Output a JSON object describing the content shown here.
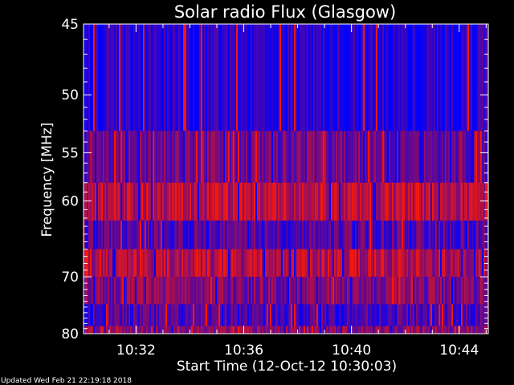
{
  "chart_data": {
    "type": "heatmap",
    "title": "Solar radio Flux (Glasgow)",
    "xlabel": "Start Time (12-Oct-12 10:30:03)",
    "ylabel": "Frequency [MHz]",
    "x_start": "10:30:03",
    "x_end": "10:45:05",
    "xlim_minutes": [
      0.05,
      15.08
    ],
    "ylim": [
      45,
      80
    ],
    "y_scale": "reciprocal",
    "xticks": [
      {
        "label": "10:32",
        "value": 2
      },
      {
        "label": "10:36",
        "value": 6
      },
      {
        "label": "10:40",
        "value": 10
      },
      {
        "label": "10:44",
        "value": 14
      }
    ],
    "yticks": [
      {
        "label": "45",
        "value": 45
      },
      {
        "label": "50",
        "value": 50
      },
      {
        "label": "55",
        "value": 55
      },
      {
        "label": "60",
        "value": 60
      },
      {
        "label": "70",
        "value": 70
      },
      {
        "label": "80",
        "value": 80
      }
    ],
    "bands": [
      {
        "from_mhz": 45.0,
        "to_mhz": 53.0,
        "level": 0.15
      },
      {
        "from_mhz": 53.0,
        "to_mhz": 58.0,
        "level": 0.45
      },
      {
        "from_mhz": 58.0,
        "to_mhz": 62.3,
        "level": 0.72
      },
      {
        "from_mhz": 62.3,
        "to_mhz": 66.0,
        "level": 0.35
      },
      {
        "from_mhz": 66.0,
        "to_mhz": 70.0,
        "level": 0.7
      },
      {
        "from_mhz": 70.0,
        "to_mhz": 74.5,
        "level": 0.5
      },
      {
        "from_mhz": 74.5,
        "to_mhz": 78.5,
        "level": 0.3
      },
      {
        "from_mhz": 78.5,
        "to_mhz": 80.0,
        "level": 0.55
      }
    ],
    "colormap": {
      "low": "#0000ff",
      "mid": "#7a0a7a",
      "high": "#ff1a00"
    },
    "footer": "Updated Wed Feb 21 22:19:18 2018"
  }
}
